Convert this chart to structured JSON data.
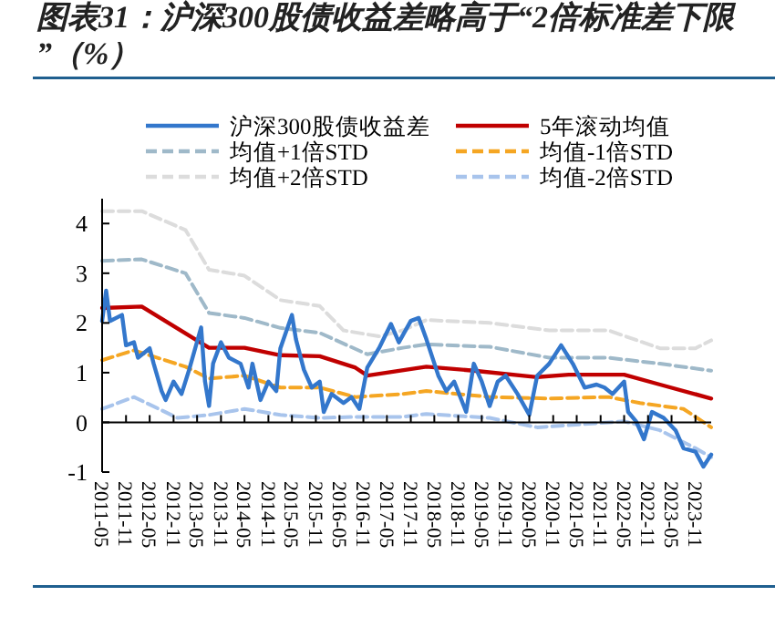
{
  "chart_data": {
    "type": "line",
    "title": "图表31：沪深300股债收益差略高于“2倍标准差下限”（%）",
    "xlim": [
      "2011-05",
      "2024-03"
    ],
    "ylim": [
      -1,
      4.5
    ],
    "xticks": [
      "2011-05",
      "2011-11",
      "2012-05",
      "2012-11",
      "2013-05",
      "2013-11",
      "2014-05",
      "2014-11",
      "2015-05",
      "2015-11",
      "2016-05",
      "2016-11",
      "2017-05",
      "2017-11",
      "2018-05",
      "2018-11",
      "2019-05",
      "2019-11",
      "2020-05",
      "2020-11",
      "2021-05",
      "2021-11",
      "2022-05",
      "2022-11",
      "2023-05",
      "2023-11"
    ],
    "yticks": [
      -1,
      0,
      1,
      2,
      3,
      4
    ],
    "legend": "top",
    "series": [
      {
        "name": "沪深300股债收益差",
        "color": "#3377cc",
        "line_style": "solid",
        "x": [
          "2011-05",
          "2011-06",
          "2011-07",
          "2011-10",
          "2011-11",
          "2012-01",
          "2012-02",
          "2012-05",
          "2012-06",
          "2012-08",
          "2012-09",
          "2012-11",
          "2013-01",
          "2013-03",
          "2013-06",
          "2013-07",
          "2013-08",
          "2013-09",
          "2013-11",
          "2014-01",
          "2014-04",
          "2014-06",
          "2014-07",
          "2014-09",
          "2014-11",
          "2015-01",
          "2015-02",
          "2015-05",
          "2015-06",
          "2015-08",
          "2015-10",
          "2015-12",
          "2016-01",
          "2016-03",
          "2016-06",
          "2016-08",
          "2016-10",
          "2016-12",
          "2017-03",
          "2017-06",
          "2017-08",
          "2017-11",
          "2018-01",
          "2018-03",
          "2018-06",
          "2018-08",
          "2018-10",
          "2019-01",
          "2019-03",
          "2019-05",
          "2019-07",
          "2019-09",
          "2019-11",
          "2020-02",
          "2020-05",
          "2020-07",
          "2020-10",
          "2021-01",
          "2021-04",
          "2021-07",
          "2021-10",
          "2021-12",
          "2022-02",
          "2022-05",
          "2022-06",
          "2022-08",
          "2022-10",
          "2022-12",
          "2023-03",
          "2023-06",
          "2023-08",
          "2023-11",
          "2024-01",
          "2024-03"
        ],
        "values": [
          2.04,
          2.65,
          2.04,
          2.16,
          1.55,
          1.61,
          1.3,
          1.49,
          1.18,
          0.63,
          0.45,
          0.82,
          0.57,
          1.06,
          1.91,
          0.82,
          0.33,
          1.18,
          1.61,
          1.3,
          1.18,
          0.7,
          1.18,
          0.45,
          0.82,
          0.63,
          1.49,
          2.16,
          1.67,
          1.06,
          0.7,
          0.82,
          0.21,
          0.57,
          0.39,
          0.51,
          0.27,
          1.1,
          1.49,
          1.98,
          1.61,
          2.04,
          2.1,
          1.67,
          0.94,
          0.63,
          0.82,
          0.21,
          1.18,
          0.82,
          0.33,
          0.82,
          0.94,
          0.57,
          0.15,
          0.94,
          1.18,
          1.55,
          1.18,
          0.7,
          0.76,
          0.7,
          0.57,
          0.82,
          0.21,
          0.02,
          -0.34,
          0.21,
          0.09,
          -0.16,
          -0.52,
          -0.59,
          -0.89,
          -0.65
        ]
      },
      {
        "name": "5年滚动均值",
        "color": "#c00000",
        "line_style": "solid",
        "x": [
          "2011-05",
          "2012-03",
          "2013-08",
          "2014-05",
          "2015-02",
          "2015-12",
          "2016-09",
          "2016-12",
          "2018-03",
          "2019-03",
          "2020-07",
          "2021-03",
          "2022-05",
          "2023-02",
          "2024-03"
        ],
        "values": [
          2.3,
          2.33,
          1.5,
          1.5,
          1.35,
          1.33,
          1.1,
          0.94,
          1.12,
          1.04,
          0.91,
          0.96,
          0.96,
          0.76,
          0.48
        ]
      },
      {
        "name": "均值+1倍STD",
        "color": "#9fb9c9",
        "line_style": "dashed",
        "x": [
          "2011-05",
          "2012-03",
          "2013-02",
          "2013-08",
          "2014-05",
          "2015-02",
          "2015-12",
          "2016-12",
          "2017-09",
          "2018-03",
          "2019-07",
          "2020-10",
          "2022-01",
          "2023-02",
          "2024-03"
        ],
        "values": [
          3.25,
          3.28,
          3.0,
          2.2,
          2.1,
          1.9,
          1.8,
          1.37,
          1.5,
          1.57,
          1.52,
          1.3,
          1.3,
          1.18,
          1.04
        ]
      },
      {
        "name": "均值-1倍STD",
        "color": "#f5a623",
        "line_style": "dashed",
        "x": [
          "2011-05",
          "2012-01",
          "2013-02",
          "2013-08",
          "2014-05",
          "2015-02",
          "2015-12",
          "2016-09",
          "2017-09",
          "2018-03",
          "2019-07",
          "2020-10",
          "2022-01",
          "2022-09",
          "2023-08",
          "2024-03"
        ],
        "values": [
          1.25,
          1.45,
          1.12,
          0.88,
          0.94,
          0.7,
          0.7,
          0.51,
          0.57,
          0.63,
          0.51,
          0.48,
          0.51,
          0.39,
          0.27,
          -0.1
        ]
      },
      {
        "name": "均值+2倍STD",
        "color": "#dcdcdc",
        "line_style": "dashed",
        "x": [
          "2011-05",
          "2012-03",
          "2013-02",
          "2013-08",
          "2014-05",
          "2015-02",
          "2015-12",
          "2016-06",
          "2017-03",
          "2017-09",
          "2018-03",
          "2019-07",
          "2020-10",
          "2022-01",
          "2023-02",
          "2023-11",
          "2024-03"
        ],
        "values": [
          4.25,
          4.25,
          3.87,
          3.07,
          2.95,
          2.46,
          2.34,
          1.85,
          1.73,
          1.85,
          2.06,
          2.0,
          1.85,
          1.85,
          1.49,
          1.49,
          1.65
        ]
      },
      {
        "name": "均值-2倍STD",
        "color": "#a8c4ec",
        "line_style": "dashed",
        "x": [
          "2011-05",
          "2012-01",
          "2012-12",
          "2013-08",
          "2014-05",
          "2015-02",
          "2015-12",
          "2016-09",
          "2017-09",
          "2018-03",
          "2019-07",
          "2020-07",
          "2021-06",
          "2022-05",
          "2023-02",
          "2023-11",
          "2024-03"
        ],
        "values": [
          0.27,
          0.51,
          0.09,
          0.15,
          0.27,
          0.15,
          0.09,
          0.11,
          0.11,
          0.17,
          0.09,
          -0.1,
          -0.04,
          0.02,
          -0.16,
          -0.52,
          -0.7
        ]
      }
    ]
  }
}
